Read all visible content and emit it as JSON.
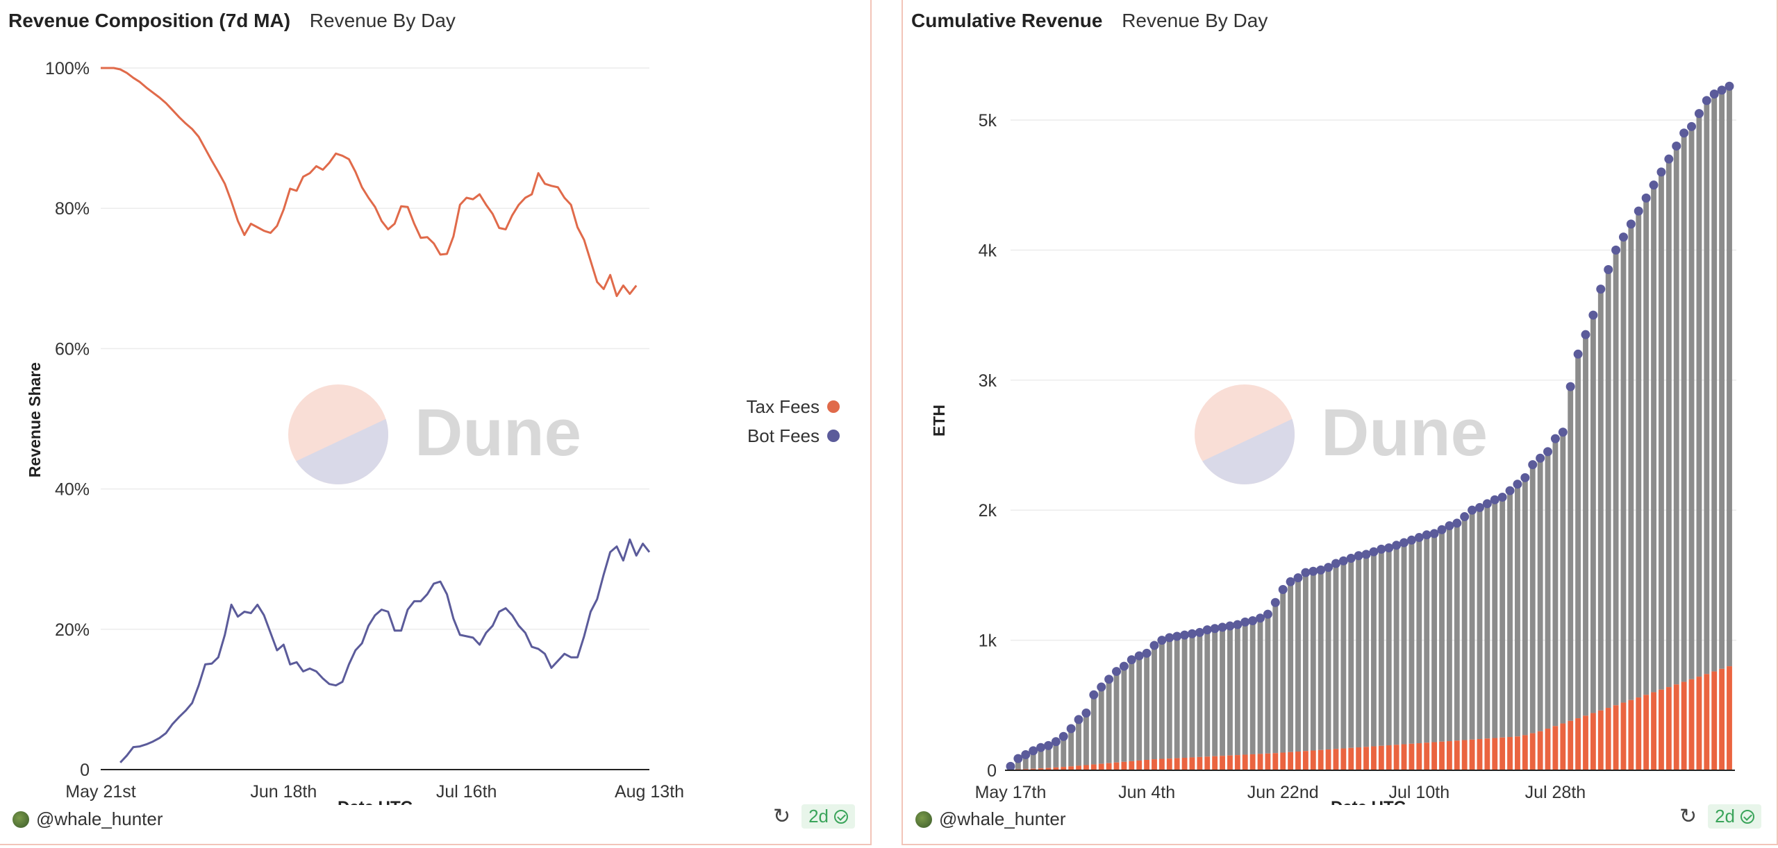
{
  "colors": {
    "tax": "#e06a4a",
    "bot": "#5b5b9a",
    "bar_gray": "#8c8c8c",
    "bar_tax": "#ea6440",
    "grid": "#ececec"
  },
  "left_panel": {
    "title": "Revenue Composition (7d MA)",
    "subtitle": "Revenue By Day",
    "author": "@whale_hunter",
    "badge": "2d",
    "watermark": "Dune",
    "chart_data": {
      "type": "line",
      "xlabel": "Date UTC",
      "ylabel": "Revenue Share",
      "ylim": [
        0,
        100
      ],
      "y_ticks": [
        0,
        20,
        40,
        60,
        80,
        100
      ],
      "y_tick_labels": [
        "0",
        "20%",
        "40%",
        "60%",
        "80%",
        "100%"
      ],
      "x_tick_labels": [
        "May 21st",
        "Jun 18th",
        "Jul 16th",
        "Aug 13th"
      ],
      "x_tick_index": [
        0,
        28,
        56,
        84
      ],
      "legend": {
        "placement": "right",
        "entries": [
          "Tax Fees",
          "Bot Fees"
        ]
      },
      "grid": true,
      "series": [
        {
          "name": "Tax Fees",
          "start_index": 0,
          "values": [
            100,
            100,
            100,
            99.8,
            99.3,
            98.6,
            98.0,
            97.2,
            96.5,
            95.8,
            95.0,
            94.0,
            93.0,
            92.1,
            91.3,
            90.2,
            88.5,
            86.8,
            85.2,
            83.5,
            81.0,
            78.2,
            76.2,
            77.8,
            77.3,
            76.8,
            76.5,
            77.5,
            79.8,
            82.8,
            82.5,
            84.5,
            85.0,
            86.0,
            85.5,
            86.5,
            87.8,
            87.5,
            87.0,
            85.2,
            83.0,
            81.5,
            80.2,
            78.2,
            77.0,
            77.8,
            80.3,
            80.2,
            77.8,
            75.8,
            75.9,
            75.0,
            73.4,
            73.5,
            76.0,
            80.5,
            81.5,
            81.3,
            82.0,
            80.5,
            79.2,
            77.2,
            77.0,
            79.0,
            80.5,
            81.5,
            82.0,
            85.0,
            83.5,
            83.2,
            83.0,
            81.5,
            80.5,
            77.3,
            75.5,
            72.5,
            69.5,
            68.5,
            70.5,
            67.5,
            69.0,
            67.8,
            69.0
          ]
        },
        {
          "name": "Bot Fees",
          "start_index": 3,
          "values": [
            1.0,
            2.0,
            3.2,
            3.3,
            3.6,
            4.0,
            4.5,
            5.2,
            6.5,
            7.5,
            8.4,
            9.5,
            12.0,
            15.0,
            15.1,
            16.0,
            19.2,
            23.5,
            21.8,
            22.5,
            22.3,
            23.5,
            22.0,
            19.5,
            17.0,
            17.8,
            15.0,
            15.3,
            14.0,
            14.4,
            14.0,
            13.0,
            12.2,
            12.0,
            12.5,
            15.0,
            17.0,
            18.0,
            20.5,
            22.0,
            22.8,
            22.5,
            19.8,
            19.8,
            22.8,
            24.0,
            24.0,
            25.0,
            26.5,
            26.8,
            25.0,
            21.5,
            19.2,
            19.0,
            18.8,
            17.8,
            19.5,
            20.5,
            22.5,
            23.0,
            22.0,
            20.5,
            19.5,
            17.5,
            17.2,
            16.5,
            14.5,
            15.5,
            16.5,
            16.0,
            16.0,
            19.0,
            22.5,
            24.3,
            27.8,
            31.0,
            31.8,
            29.8,
            32.8,
            30.5,
            32.2,
            31.0
          ]
        }
      ]
    }
  },
  "right_panel": {
    "title": "Cumulative Revenue",
    "subtitle": "Revenue By Day",
    "author": "@whale_hunter",
    "badge": "2d",
    "watermark": "Dune",
    "chart_data": {
      "type": "bar",
      "stacked": true,
      "xlabel": "Date UTC",
      "ylabel": "ETH",
      "ylim": [
        0,
        5400
      ],
      "y_ticks": [
        0,
        1000,
        2000,
        3000,
        4000,
        5000
      ],
      "y_tick_labels": [
        "0",
        "1k",
        "2k",
        "3k",
        "4k",
        "5k"
      ],
      "x_tick_labels": [
        "May 17th",
        "Jun 4th",
        "Jun 22nd",
        "Jul 10th",
        "Jul 28th"
      ],
      "x_tick_index": [
        0,
        18,
        36,
        54,
        72
      ],
      "grid": true,
      "totals": [
        30,
        90,
        120,
        150,
        175,
        190,
        220,
        260,
        320,
        390,
        440,
        580,
        640,
        700,
        760,
        800,
        850,
        880,
        900,
        960,
        1000,
        1020,
        1030,
        1040,
        1050,
        1060,
        1080,
        1090,
        1100,
        1110,
        1120,
        1140,
        1150,
        1170,
        1200,
        1290,
        1390,
        1450,
        1480,
        1520,
        1530,
        1540,
        1560,
        1590,
        1610,
        1630,
        1650,
        1660,
        1680,
        1700,
        1710,
        1730,
        1750,
        1770,
        1790,
        1810,
        1820,
        1850,
        1880,
        1900,
        1950,
        2000,
        2020,
        2050,
        2080,
        2100,
        2150,
        2200,
        2250,
        2350,
        2400,
        2450,
        2550,
        2600,
        2950,
        3200,
        3350,
        3500,
        3700,
        3850,
        4000,
        4100,
        4200,
        4300,
        4400,
        4500,
        4600,
        4700,
        4800,
        4900,
        4950,
        5050,
        5150,
        5200,
        5230,
        5260
      ],
      "tax": [
        5,
        8,
        10,
        12,
        15,
        18,
        22,
        26,
        30,
        35,
        40,
        45,
        50,
        55,
        60,
        65,
        70,
        75,
        80,
        85,
        88,
        90,
        93,
        96,
        99,
        102,
        105,
        108,
        111,
        114,
        117,
        120,
        123,
        126,
        129,
        132,
        136,
        140,
        144,
        148,
        152,
        156,
        160,
        164,
        168,
        172,
        176,
        180,
        184,
        188,
        192,
        196,
        200,
        204,
        208,
        212,
        216,
        220,
        224,
        228,
        232,
        236,
        240,
        244,
        248,
        252,
        256,
        260,
        270,
        285,
        300,
        320,
        340,
        360,
        380,
        400,
        420,
        440,
        460,
        480,
        500,
        520,
        540,
        560,
        580,
        600,
        620,
        640,
        660,
        680,
        700,
        720,
        740,
        760,
        780,
        800
      ]
    }
  }
}
